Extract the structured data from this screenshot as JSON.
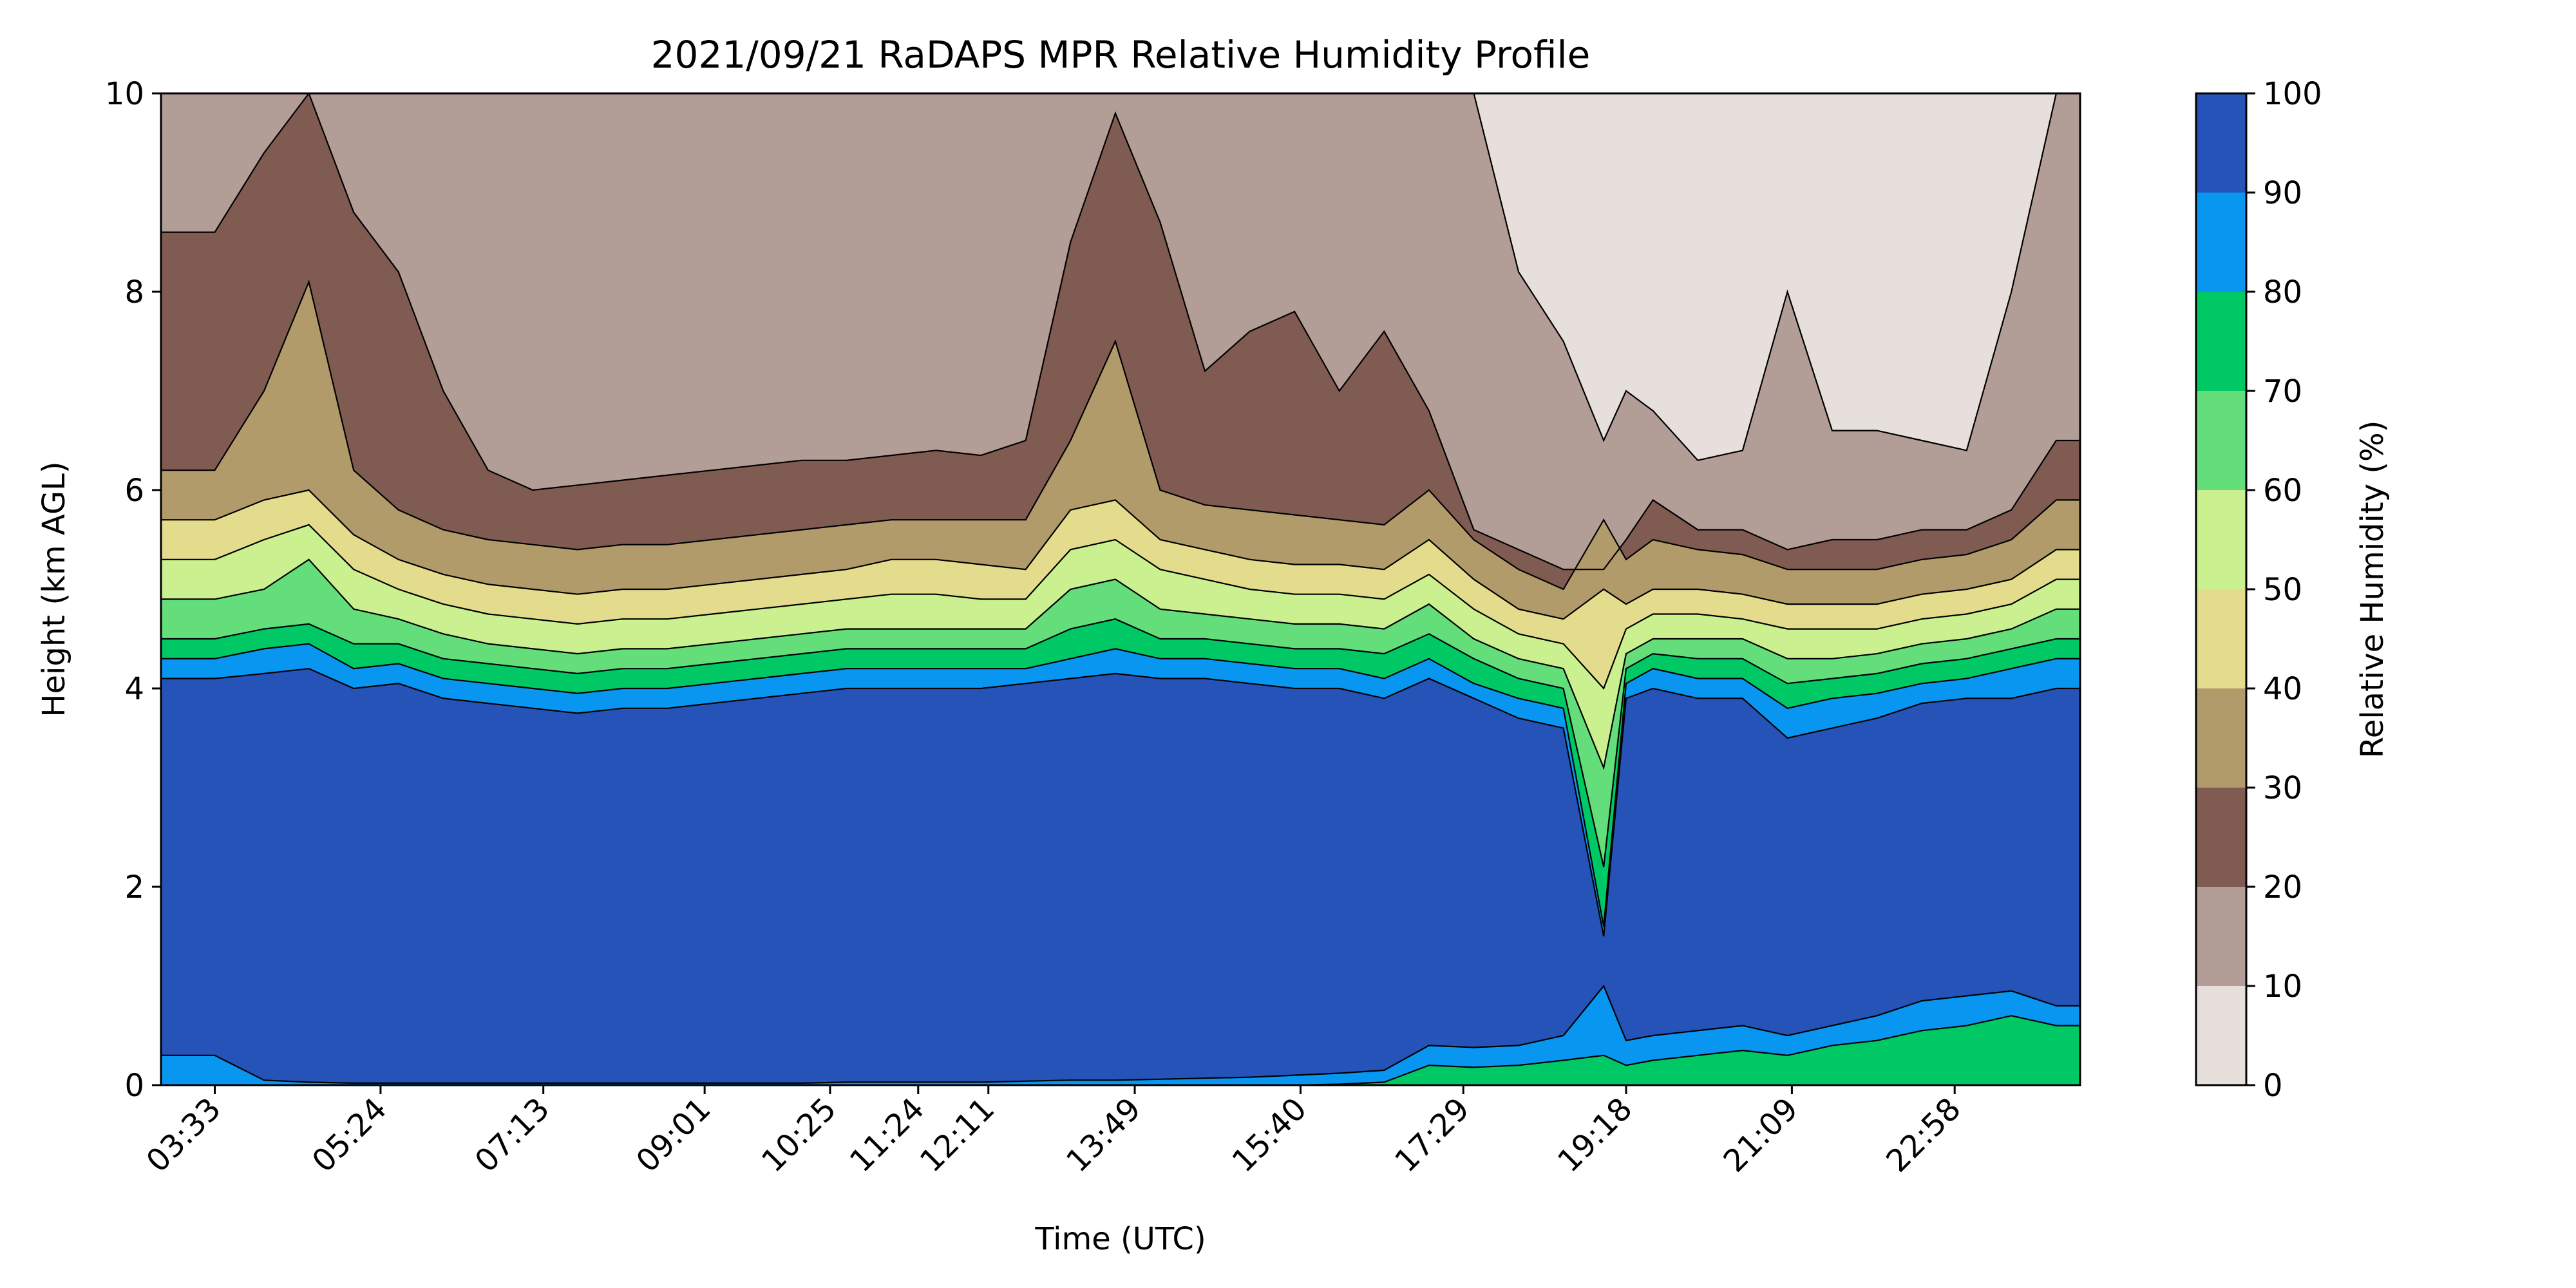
{
  "chart_data": {
    "type": "contour",
    "title": "2021/09/21 RaDAPS MPR Relative Humidity Profile",
    "xlabel": "Time (UTC)",
    "ylabel": "Height (km AGL)",
    "ylim": [
      0,
      10
    ],
    "xlim": [
      "02:57",
      "00:22"
    ],
    "x_ticks": [
      "03:33",
      "05:24",
      "07:13",
      "09:01",
      "10:25",
      "11:24",
      "12:11",
      "13:49",
      "15:40",
      "17:29",
      "19:18",
      "21:09",
      "22:58"
    ],
    "y_ticks": [
      "0",
      "2",
      "4",
      "6",
      "8",
      "10"
    ],
    "colorbar": {
      "label": "Relative Humidity (%)",
      "ticks": [
        "0",
        "10",
        "20",
        "30",
        "40",
        "50",
        "60",
        "70",
        "80",
        "90",
        "100"
      ],
      "levels": [
        0,
        10,
        20,
        30,
        40,
        50,
        60,
        70,
        80,
        90,
        100
      ],
      "colors": [
        "#e6dfdc",
        "#b29d97",
        "#7f5b52",
        "#b19b6a",
        "#e3dc8c",
        "#cbf08f",
        "#64dd7b",
        "#00c864",
        "#0896f0",
        "#2553b8"
      ]
    },
    "x_hours": [
      3.55,
      4.1,
      4.6,
      5.1,
      5.6,
      6.1,
      6.6,
      7.1,
      7.6,
      8.1,
      8.6,
      9.1,
      9.6,
      10.1,
      10.6,
      11.1,
      11.6,
      12.1,
      12.6,
      13.1,
      13.6,
      14.1,
      14.6,
      15.1,
      15.6,
      16.1,
      16.6,
      17.1,
      17.6,
      18.1,
      18.6,
      19.05,
      19.3,
      19.6,
      20.1,
      20.6,
      21.1,
      21.6,
      22.1,
      22.6,
      23.1,
      23.6,
      24.1
    ],
    "boundaries_km": {
      "rh90_top": [
        4.1,
        4.15,
        4.2,
        4.0,
        4.05,
        3.9,
        3.85,
        3.8,
        3.75,
        3.8,
        3.8,
        3.85,
        3.9,
        3.95,
        4.0,
        4.0,
        4.0,
        4.0,
        4.05,
        4.1,
        4.15,
        4.1,
        4.1,
        4.05,
        4.0,
        4.0,
        3.9,
        4.1,
        3.9,
        3.7,
        3.6,
        1.5,
        3.9,
        4.0,
        3.9,
        3.9,
        3.5,
        3.6,
        3.7,
        3.85,
        3.9,
        3.9,
        4.0
      ],
      "rh80_top": [
        4.3,
        4.4,
        4.45,
        4.2,
        4.25,
        4.1,
        4.05,
        4.0,
        3.95,
        4.0,
        4.0,
        4.05,
        4.1,
        4.15,
        4.2,
        4.2,
        4.2,
        4.2,
        4.2,
        4.3,
        4.4,
        4.3,
        4.3,
        4.25,
        4.2,
        4.2,
        4.1,
        4.3,
        4.05,
        3.9,
        3.8,
        1.6,
        4.05,
        4.2,
        4.1,
        4.1,
        3.8,
        3.9,
        3.95,
        4.05,
        4.1,
        4.2,
        4.3
      ],
      "rh70_top": [
        4.5,
        4.6,
        4.65,
        4.45,
        4.45,
        4.3,
        4.25,
        4.2,
        4.15,
        4.2,
        4.2,
        4.25,
        4.3,
        4.35,
        4.4,
        4.4,
        4.4,
        4.4,
        4.4,
        4.6,
        4.7,
        4.5,
        4.5,
        4.45,
        4.4,
        4.4,
        4.35,
        4.55,
        4.3,
        4.1,
        4.0,
        2.2,
        4.2,
        4.35,
        4.3,
        4.3,
        4.05,
        4.1,
        4.15,
        4.25,
        4.3,
        4.4,
        4.5
      ],
      "rh60_top": [
        4.9,
        5.0,
        5.3,
        4.8,
        4.7,
        4.55,
        4.45,
        4.4,
        4.35,
        4.4,
        4.4,
        4.45,
        4.5,
        4.55,
        4.6,
        4.6,
        4.6,
        4.6,
        4.6,
        5.0,
        5.1,
        4.8,
        4.75,
        4.7,
        4.65,
        4.65,
        4.6,
        4.85,
        4.5,
        4.3,
        4.2,
        3.2,
        4.35,
        4.5,
        4.5,
        4.5,
        4.3,
        4.3,
        4.35,
        4.45,
        4.5,
        4.6,
        4.8
      ],
      "rh50_top": [
        5.3,
        5.5,
        5.65,
        5.2,
        5.0,
        4.85,
        4.75,
        4.7,
        4.65,
        4.7,
        4.7,
        4.75,
        4.8,
        4.85,
        4.9,
        4.95,
        4.95,
        4.9,
        4.9,
        5.4,
        5.5,
        5.2,
        5.1,
        5.0,
        4.95,
        4.95,
        4.9,
        5.15,
        4.8,
        4.55,
        4.45,
        4.0,
        4.6,
        4.75,
        4.75,
        4.7,
        4.6,
        4.6,
        4.6,
        4.7,
        4.75,
        4.85,
        5.1
      ],
      "rh40_top": [
        5.7,
        5.9,
        6.0,
        5.55,
        5.3,
        5.15,
        5.05,
        5.0,
        4.95,
        5.0,
        5.0,
        5.05,
        5.1,
        5.15,
        5.2,
        5.3,
        5.3,
        5.25,
        5.2,
        5.8,
        5.9,
        5.5,
        5.4,
        5.3,
        5.25,
        5.25,
        5.2,
        5.5,
        5.1,
        4.8,
        4.7,
        5.0,
        4.85,
        5.0,
        5.0,
        4.95,
        4.85,
        4.85,
        4.85,
        4.95,
        5.0,
        5.1,
        5.4
      ],
      "rh30_top": [
        6.2,
        7.0,
        8.1,
        6.2,
        5.8,
        5.6,
        5.5,
        5.45,
        5.4,
        5.45,
        5.45,
        5.5,
        5.55,
        5.6,
        5.65,
        5.7,
        5.7,
        5.7,
        5.7,
        6.5,
        7.5,
        6.0,
        5.85,
        5.8,
        5.75,
        5.7,
        5.65,
        6.0,
        5.5,
        5.2,
        5.0,
        5.7,
        5.3,
        5.5,
        5.4,
        5.35,
        5.2,
        5.2,
        5.2,
        5.3,
        5.35,
        5.5,
        5.9
      ],
      "rh20_top": [
        8.6,
        9.4,
        10.0,
        8.8,
        8.2,
        7.0,
        6.2,
        6.0,
        6.05,
        6.1,
        6.15,
        6.2,
        6.25,
        6.3,
        6.3,
        6.35,
        6.4,
        6.35,
        6.5,
        8.5,
        9.8,
        8.7,
        7.2,
        7.6,
        7.8,
        7.0,
        7.6,
        6.8,
        5.6,
        5.4,
        5.2,
        5.2,
        5.5,
        5.9,
        5.6,
        5.6,
        5.4,
        5.5,
        5.5,
        5.6,
        5.6,
        5.8,
        6.5
      ],
      "rh10_top": [
        10,
        10,
        10,
        10,
        10,
        10,
        10,
        10,
        10,
        10,
        10,
        10,
        10,
        10,
        10,
        10,
        10,
        10,
        10,
        10,
        10,
        10,
        10,
        10,
        10,
        10,
        10,
        10,
        10,
        8.2,
        7.5,
        6.5,
        7.0,
        6.8,
        6.3,
        6.4,
        8.0,
        6.6,
        6.6,
        6.5,
        6.4,
        8.0,
        10.0
      ],
      "rh80_bottom": [
        0.3,
        0.05,
        0.03,
        0.02,
        0.02,
        0.02,
        0.02,
        0.02,
        0.02,
        0.02,
        0.02,
        0.02,
        0.02,
        0.02,
        0.03,
        0.03,
        0.03,
        0.03,
        0.04,
        0.05,
        0.05,
        0.06,
        0.07,
        0.08,
        0.1,
        0.12,
        0.15,
        0.4,
        0.38,
        0.4,
        0.5,
        1.0,
        0.45,
        0.5,
        0.55,
        0.6,
        0.5,
        0.6,
        0.7,
        0.85,
        0.9,
        0.95,
        0.8
      ],
      "rh70_bottom": [
        0,
        0,
        0,
        0,
        0,
        0,
        0,
        0,
        0,
        0,
        0,
        0,
        0,
        0,
        0,
        0,
        0,
        0,
        0,
        0,
        0,
        0,
        0,
        0,
        0,
        0.01,
        0.03,
        0.2,
        0.18,
        0.2,
        0.25,
        0.3,
        0.2,
        0.25,
        0.3,
        0.35,
        0.3,
        0.4,
        0.45,
        0.55,
        0.6,
        0.7,
        0.6
      ]
    }
  }
}
